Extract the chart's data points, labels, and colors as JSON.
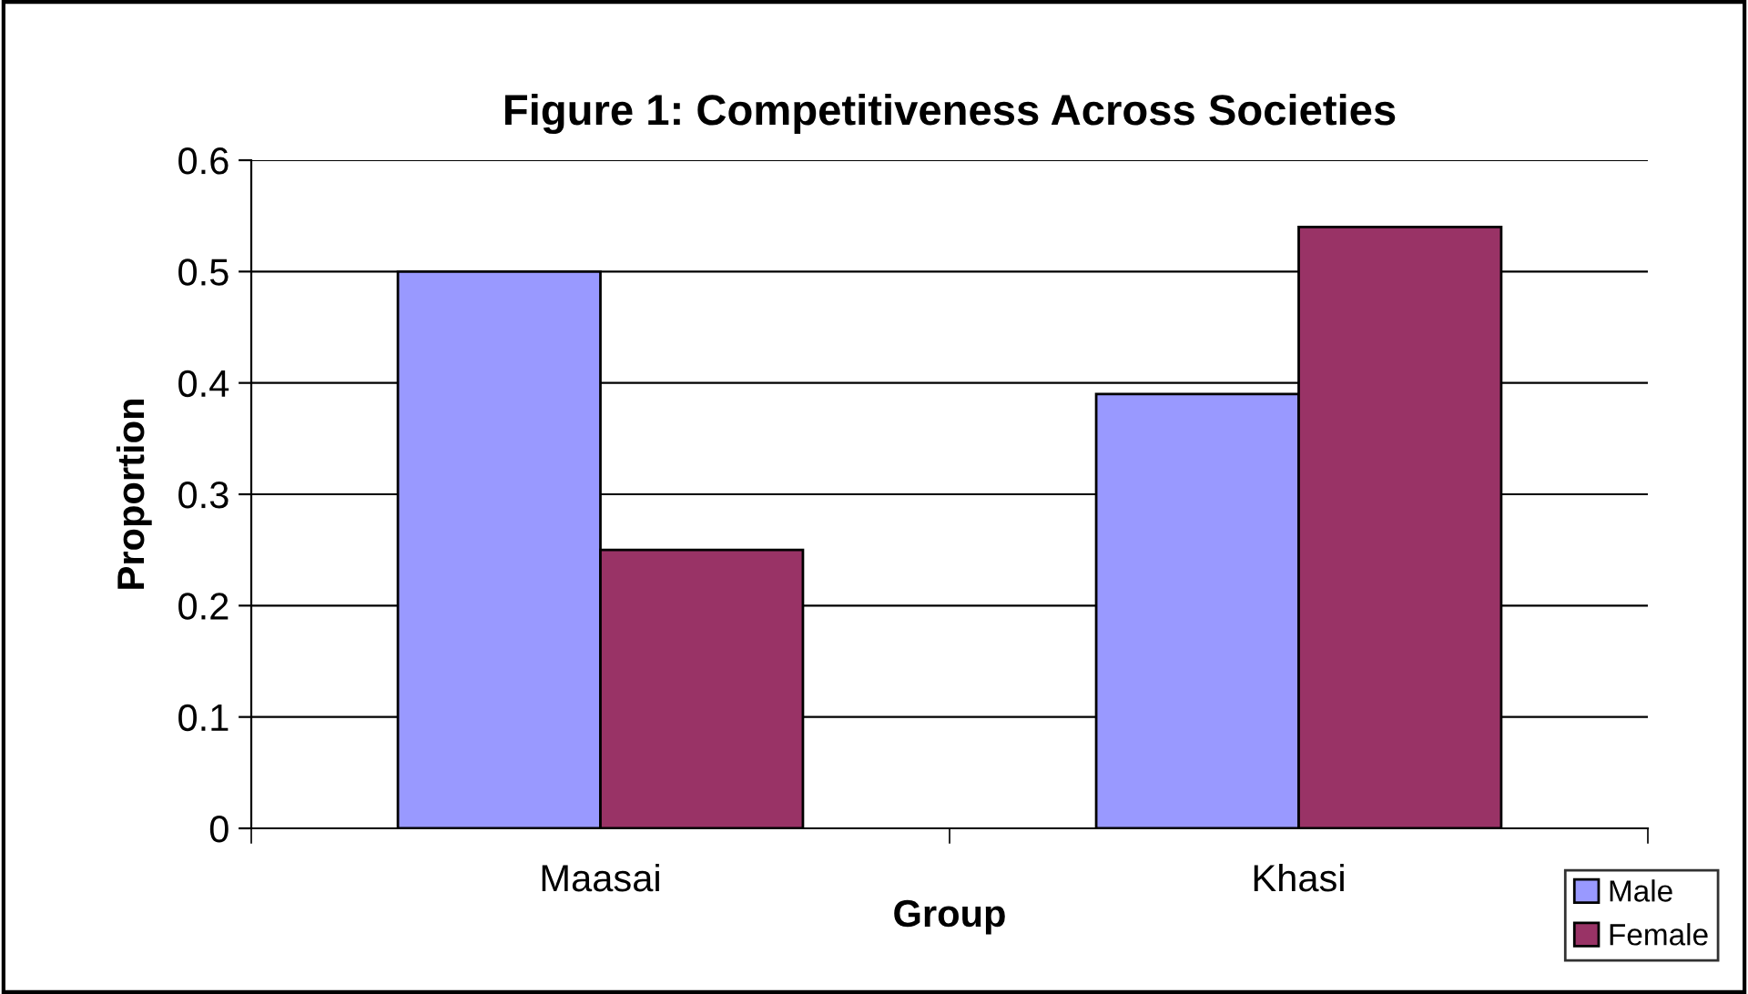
{
  "chart_data": {
    "type": "bar",
    "title": "Figure 1: Competitiveness Across Societies",
    "xlabel": "Group",
    "ylabel": "Proportion",
    "categories": [
      "Maasai",
      "Khasi"
    ],
    "series": [
      {
        "name": "Male",
        "color": "#9999ff",
        "values": [
          0.5,
          0.39
        ]
      },
      {
        "name": "Female",
        "color": "#993366",
        "values": [
          0.25,
          0.54
        ]
      }
    ],
    "ylim": [
      0,
      0.6
    ],
    "yticks": [
      0,
      0.1,
      0.2,
      0.3,
      0.4,
      0.5,
      0.6
    ],
    "grid": "y",
    "legend": "bottom right"
  }
}
